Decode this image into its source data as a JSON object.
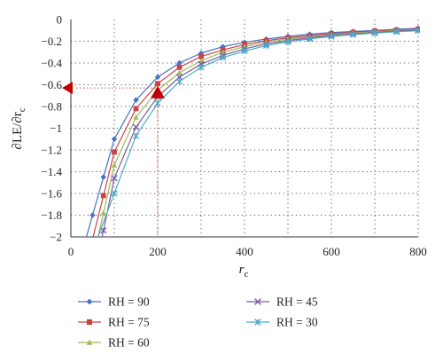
{
  "chart_data": {
    "type": "line",
    "xlabel_main": "r",
    "xlabel_sub": "c",
    "ylabel_pre": "∂LE/∂r",
    "ylabel_sub": "c",
    "xlim": [
      0,
      800
    ],
    "ylim": [
      -2,
      0
    ],
    "x_ticks": [
      0,
      200,
      400,
      600,
      800
    ],
    "y_ticks": [
      0,
      -0.2,
      -0.4,
      -0.6,
      -0.8,
      -1,
      -1.2,
      -1.4,
      -1.6,
      -1.8,
      -2
    ],
    "x_tick_labels": [
      "0",
      "200",
      "400",
      "600",
      "800"
    ],
    "y_tick_labels": [
      "0",
      "−0.2",
      "−0.4",
      "−0.6",
      "−0.8",
      "−1",
      "−1.2",
      "−1.4",
      "−1.6",
      "−1.8",
      "−2"
    ],
    "grid_x": [
      100,
      200,
      300,
      400,
      500,
      600,
      700,
      800
    ],
    "grid_y": [
      -0.2,
      -0.4,
      -0.6,
      -0.8,
      -1.0,
      -1.2,
      -1.4,
      -1.6,
      -1.8
    ],
    "grid": "dotted",
    "legend_position": "bottom",
    "series": [
      {
        "name": "RH = 90",
        "color": "#4472C4",
        "marker": "diamond",
        "x": [
          50,
          75,
          100,
          150,
          200,
          250,
          300,
          350,
          400,
          450,
          500,
          550,
          600,
          650,
          700,
          750,
          800
        ],
        "y": [
          -1.8,
          -1.45,
          -1.1,
          -0.74,
          -0.53,
          -0.4,
          -0.31,
          -0.25,
          -0.21,
          -0.18,
          -0.155,
          -0.135,
          -0.12,
          -0.11,
          -0.1,
          -0.09,
          -0.08
        ]
      },
      {
        "name": "RH = 75",
        "color": "#D04040",
        "marker": "square",
        "x": [
          75,
          100,
          150,
          200,
          250,
          300,
          350,
          400,
          450,
          500,
          550,
          600,
          650,
          700,
          750,
          800
        ],
        "y": [
          -1.62,
          -1.22,
          -0.82,
          -0.59,
          -0.44,
          -0.34,
          -0.28,
          -0.23,
          -0.195,
          -0.168,
          -0.148,
          -0.13,
          -0.118,
          -0.106,
          -0.097,
          -0.088
        ]
      },
      {
        "name": "RH = 60",
        "color": "#9BBB59",
        "marker": "triangle",
        "x": [
          75,
          100,
          150,
          200,
          250,
          300,
          350,
          400,
          450,
          500,
          550,
          600,
          650,
          700,
          750,
          800
        ],
        "y": [
          -1.78,
          -1.34,
          -0.9,
          -0.65,
          -0.49,
          -0.38,
          -0.3,
          -0.25,
          -0.21,
          -0.18,
          -0.158,
          -0.14,
          -0.125,
          -0.113,
          -0.103,
          -0.094
        ]
      },
      {
        "name": "RH = 45",
        "color": "#7B5AA6",
        "marker": "x",
        "x": [
          75,
          100,
          150,
          200,
          250,
          300,
          350,
          400,
          450,
          500,
          550,
          600,
          650,
          700,
          750,
          800
        ],
        "y": [
          -1.94,
          -1.46,
          -0.99,
          -0.71,
          -0.53,
          -0.41,
          -0.33,
          -0.27,
          -0.225,
          -0.193,
          -0.168,
          -0.148,
          -0.132,
          -0.119,
          -0.108,
          -0.098
        ]
      },
      {
        "name": "RH = 30",
        "color": "#4BACC6",
        "marker": "star",
        "x": [
          100,
          150,
          200,
          250,
          300,
          350,
          400,
          450,
          500,
          550,
          600,
          650,
          700,
          750,
          800
        ],
        "y": [
          -1.6,
          -1.07,
          -0.77,
          -0.57,
          -0.44,
          -0.35,
          -0.29,
          -0.24,
          -0.205,
          -0.178,
          -0.156,
          -0.139,
          -0.125,
          -0.113,
          -0.103
        ]
      }
    ],
    "annotation": {
      "x": 200,
      "y": -0.7,
      "y_axis_value": -0.63,
      "color": "#C00000",
      "line_color": "#D46A4A",
      "style": "dotted"
    }
  }
}
